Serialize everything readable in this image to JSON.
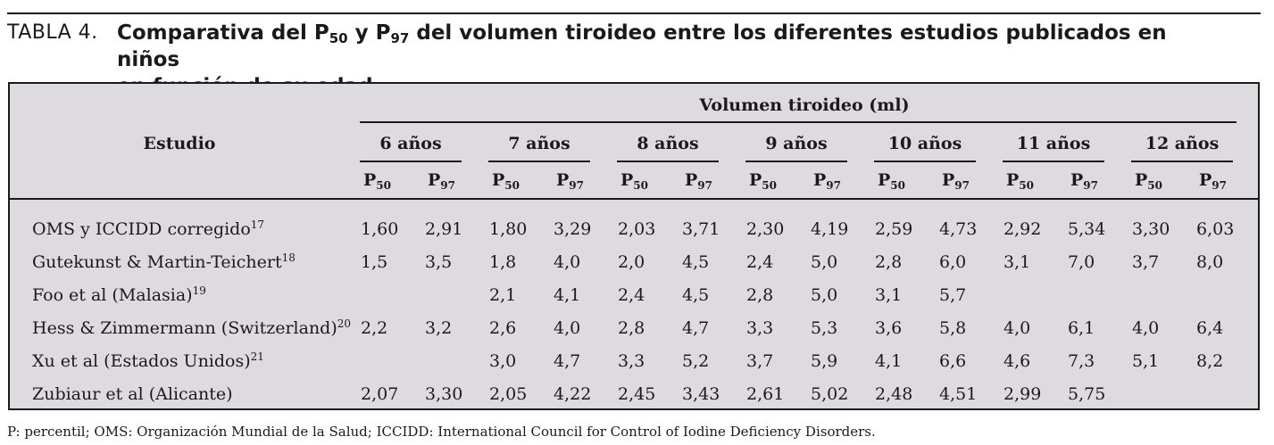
{
  "caption": {
    "label": "TABLA 4.",
    "title_part1": "Comparativa del P",
    "title_sub1": "50",
    "title_part2": " y P",
    "title_sub2": "97",
    "title_part3": " del volumen tiroideo entre los diferentes estudios publicados en niños",
    "title_line2": "en función de su edad"
  },
  "table": {
    "group_header": "Volumen tiroideo (ml)",
    "study_header": "Estudio",
    "ages": [
      "6 años",
      "7 años",
      "8 años",
      "9 años",
      "10 años",
      "11 años",
      "12 años"
    ],
    "percentiles": [
      {
        "letter": "P",
        "sub": "50"
      },
      {
        "letter": "P",
        "sub": "97"
      }
    ],
    "rows": [
      {
        "study": "OMS y ICCIDD corregido",
        "ref": "17",
        "values": [
          "1,60",
          "2,91",
          "1,80",
          "3,29",
          "2,03",
          "3,71",
          "2,30",
          "4,19",
          "2,59",
          "4,73",
          "2,92",
          "5,34",
          "3,30",
          "6,03"
        ]
      },
      {
        "study": "Gutekunst & Martin-Teichert",
        "ref": "18",
        "values": [
          "1,5",
          "3,5",
          "1,8",
          "4,0",
          "2,0",
          "4,5",
          "2,4",
          "5,0",
          "2,8",
          "6,0",
          "3,1",
          "7,0",
          "3,7",
          "8,0"
        ]
      },
      {
        "study": "Foo et al (Malasia)",
        "ref": "19",
        "values": [
          "",
          "",
          "2,1",
          "4,1",
          "2,4",
          "4,5",
          "2,8",
          "5,0",
          "3,1",
          "5,7",
          "",
          "",
          "",
          ""
        ]
      },
      {
        "study": "Hess & Zimmermann (Switzerland)",
        "ref": "20",
        "values": [
          "2,2",
          "3,2",
          "2,6",
          "4,0",
          "2,8",
          "4,7",
          "3,3",
          "5,3",
          "3,6",
          "5,8",
          "4,0",
          "6,1",
          "4,0",
          "6,4"
        ]
      },
      {
        "study": "Xu et al (Estados Unidos)",
        "ref": "21",
        "values": [
          "",
          "",
          "3,0",
          "4,7",
          "3,3",
          "5,2",
          "3,7",
          "5,9",
          "4,1",
          "6,6",
          "4,6",
          "7,3",
          "5,1",
          "8,2"
        ]
      },
      {
        "study": "Zubiaur et al (Alicante)",
        "ref": "",
        "values": [
          "2,07",
          "3,30",
          "2,05",
          "4,22",
          "2,45",
          "3,43",
          "2,61",
          "5,02",
          "2,48",
          "4,51",
          "2,99",
          "5,75",
          "",
          ""
        ]
      }
    ]
  },
  "footnote": "P: percentil; OMS: Organización Mundial de la Salud; ICCIDD: International Council for Control of Iodine Deficiency Disorders."
}
